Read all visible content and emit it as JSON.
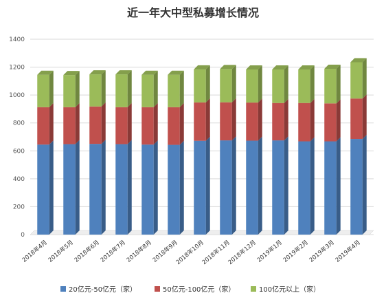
{
  "chart_data": {
    "type": "bar",
    "stacked": true,
    "title": "近一年大中型私募增长情况",
    "xlabel": "",
    "ylabel": "",
    "ylim": [
      0,
      1400
    ],
    "yticks": [
      0,
      200,
      400,
      600,
      800,
      1000,
      1200,
      1400
    ],
    "grid": true,
    "legend_position": "bottom",
    "categories": [
      "2018年4月",
      "2018年5月",
      "2018年6月",
      "2018年7月",
      "2018年8月",
      "2018年9月",
      "2018年10月",
      "2018年11月",
      "2018年12月",
      "2019年1月",
      "2019年2月",
      "2019年3月",
      "2019年4月"
    ],
    "series": [
      {
        "name": "20亿元-50亿元（家）",
        "color": "#4f81bd",
        "values": [
          645,
          648,
          650,
          648,
          645,
          643,
          672,
          675,
          673,
          675,
          668,
          668,
          685
        ]
      },
      {
        "name": "50亿元-100亿元（家）",
        "color": "#c0504d",
        "values": [
          268,
          265,
          268,
          265,
          268,
          270,
          275,
          273,
          273,
          268,
          275,
          272,
          290
        ]
      },
      {
        "name": "100亿元以上（家）",
        "color": "#9bbb59",
        "values": [
          232,
          230,
          230,
          235,
          232,
          232,
          237,
          238,
          237,
          240,
          240,
          248,
          260
        ]
      }
    ]
  }
}
